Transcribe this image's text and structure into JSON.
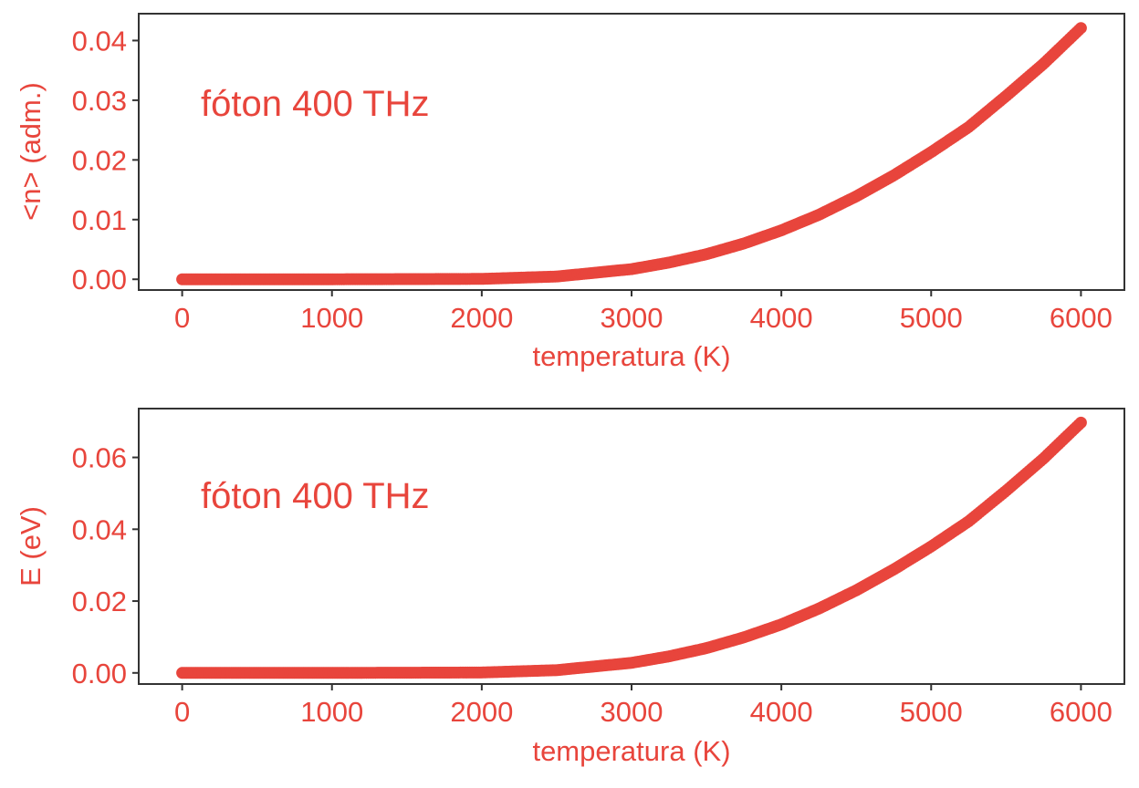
{
  "colors": {
    "accent": "#E8453C",
    "frame": "#333333",
    "background": "#ffffff"
  },
  "chart_data": [
    {
      "type": "scatter",
      "title": "",
      "xlabel": "temperatura (K)",
      "ylabel": "<n> (adm.)",
      "annotation": "fóton 400 THz",
      "xlim": [
        -290,
        6290
      ],
      "ylim": [
        -0.0018,
        0.0445
      ],
      "xticks": [
        0,
        1000,
        2000,
        3000,
        4000,
        5000,
        6000
      ],
      "xtick_labels": [
        "0",
        "1000",
        "2000",
        "3000",
        "4000",
        "5000",
        "6000"
      ],
      "yticks": [
        0,
        0.01,
        0.02,
        0.03,
        0.04
      ],
      "ytick_labels": [
        "0.00",
        "0.01",
        "0.02",
        "0.03",
        "0.04"
      ],
      "grid": false,
      "x": [
        0,
        500,
        1000,
        1500,
        2000,
        2500,
        3000,
        3250,
        3500,
        3750,
        4000,
        4250,
        4500,
        4750,
        5000,
        5250,
        5500,
        5750,
        6000
      ],
      "y": [
        0,
        0,
        5e-07,
        2.8e-05,
        6.8e-05,
        0.00046,
        0.0017,
        0.0028,
        0.0042,
        0.006,
        0.0082,
        0.0108,
        0.0139,
        0.0174,
        0.0213,
        0.0255,
        0.0307,
        0.0361,
        0.0421
      ]
    },
    {
      "type": "scatter",
      "title": "",
      "xlabel": "temperatura (K)",
      "ylabel": "E (eV)",
      "annotation": "fóton 400 THz",
      "xlim": [
        -290,
        6290
      ],
      "ylim": [
        -0.0031,
        0.0736
      ],
      "xticks": [
        0,
        1000,
        2000,
        3000,
        4000,
        5000,
        6000
      ],
      "xtick_labels": [
        "0",
        "1000",
        "2000",
        "3000",
        "4000",
        "5000",
        "6000"
      ],
      "yticks": [
        0,
        0.02,
        0.04,
        0.06
      ],
      "ytick_labels": [
        "0.00",
        "0.02",
        "0.04",
        "0.06"
      ],
      "grid": false,
      "x": [
        0,
        500,
        1000,
        1500,
        2000,
        2500,
        3000,
        3250,
        3500,
        3750,
        4000,
        4250,
        4500,
        4750,
        5000,
        5250,
        5500,
        5750,
        6000
      ],
      "y": [
        0,
        0,
        8e-07,
        4.6e-05,
        0.00011,
        0.00076,
        0.0028,
        0.0046,
        0.0069,
        0.0099,
        0.0135,
        0.0179,
        0.023,
        0.0288,
        0.0352,
        0.0422,
        0.0507,
        0.0597,
        0.0697
      ]
    }
  ]
}
